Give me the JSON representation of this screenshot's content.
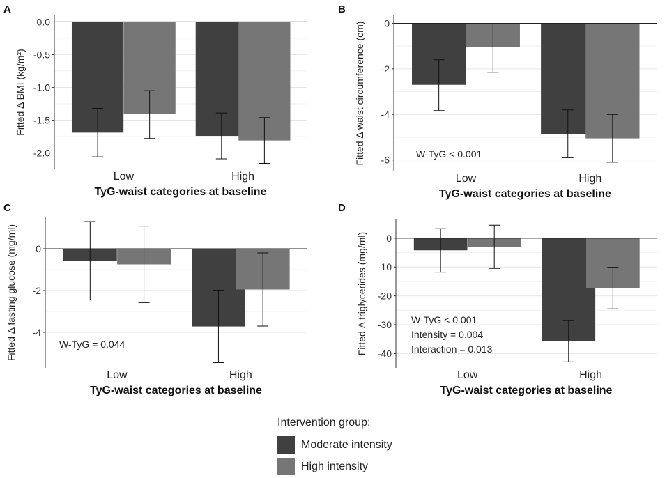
{
  "legend": {
    "title": "Intervention group:",
    "items": [
      {
        "label": "Moderate intensity",
        "color": "#404040"
      },
      {
        "label": "High intensity",
        "color": "#767676"
      }
    ]
  },
  "chart_data": [
    {
      "panel": "A",
      "type": "bar",
      "xlabel": "TyG-waist categories at baseline",
      "ylabel": "Fitted Δ BMI (kg/m²)",
      "categories": [
        "Low",
        "High"
      ],
      "ylim": [
        -2.25,
        0.1
      ],
      "yticks": [
        0.0,
        -0.5,
        -1.0,
        -1.5,
        -2.0
      ],
      "ytick_labels": [
        "0.0",
        "-0.5",
        "-1.0",
        "-1.5",
        "-2.0"
      ],
      "series": [
        {
          "name": "Moderate intensity",
          "values": [
            -1.69,
            -1.74
          ],
          "lower": [
            -2.06,
            -2.09
          ],
          "upper": [
            -1.32,
            -1.39
          ]
        },
        {
          "name": "High intensity",
          "values": [
            -1.41,
            -1.81
          ],
          "lower": [
            -1.78,
            -2.16
          ],
          "upper": [
            -1.05,
            -1.46
          ]
        }
      ],
      "annotations": []
    },
    {
      "panel": "B",
      "type": "bar",
      "xlabel": "TyG-waist categories at baseline",
      "ylabel": "Fitted Δ waist circumference (cm)",
      "categories": [
        "Low",
        "High"
      ],
      "ylim": [
        -6.5,
        0.35
      ],
      "yticks": [
        0,
        -2,
        -4,
        -6
      ],
      "ytick_labels": [
        "0",
        "-2",
        "-4",
        "-6"
      ],
      "series": [
        {
          "name": "Moderate intensity",
          "values": [
            -2.7,
            -4.85
          ],
          "lower": [
            -3.83,
            -5.9
          ],
          "upper": [
            -1.6,
            -3.8
          ]
        },
        {
          "name": "High intensity",
          "values": [
            -1.05,
            -5.05
          ],
          "lower": [
            -2.15,
            -6.1
          ],
          "upper": [
            0.0,
            -4.0
          ]
        }
      ],
      "annotations": [
        "W-TyG < 0.001"
      ]
    },
    {
      "panel": "C",
      "type": "bar",
      "xlabel": "TyG-waist categories at baseline",
      "ylabel": "Fitted Δ fasting glucose (mg/ml)",
      "categories": [
        "Low",
        "High"
      ],
      "ylim": [
        -5.7,
        1.5
      ],
      "yticks": [
        0,
        -2,
        -4
      ],
      "ytick_labels": [
        "0",
        "-2",
        "-4"
      ],
      "series": [
        {
          "name": "Moderate intensity",
          "values": [
            -0.58,
            -3.72
          ],
          "lower": [
            -2.45,
            -5.45
          ],
          "upper": [
            1.3,
            -1.98
          ]
        },
        {
          "name": "High intensity",
          "values": [
            -0.75,
            -1.95
          ],
          "lower": [
            -2.58,
            -3.7
          ],
          "upper": [
            1.08,
            -0.2
          ]
        }
      ],
      "annotations": [
        "W-TyG = 0.044"
      ]
    },
    {
      "panel": "D",
      "type": "bar",
      "xlabel": "TyG-waist categories at baseline",
      "ylabel": "Fitted Δ triglycerides (mg/ml)",
      "categories": [
        "Low",
        "High"
      ],
      "ylim": [
        -45,
        6.5
      ],
      "yticks": [
        0,
        -10,
        -20,
        -30,
        -40
      ],
      "ytick_labels": [
        "0",
        "-10",
        "-20",
        "-30",
        "-40"
      ],
      "series": [
        {
          "name": "Moderate intensity",
          "values": [
            -4.2,
            -35.7
          ],
          "lower": [
            -11.8,
            -42.9
          ],
          "upper": [
            3.3,
            -28.5
          ]
        },
        {
          "name": "High intensity",
          "values": [
            -3.0,
            -17.3
          ],
          "lower": [
            -10.5,
            -24.5
          ],
          "upper": [
            4.5,
            -10.1
          ]
        }
      ],
      "annotations": [
        "W-TyG < 0.001",
        "Intensity = 0.004",
        "Interaction = 0.013"
      ]
    }
  ]
}
